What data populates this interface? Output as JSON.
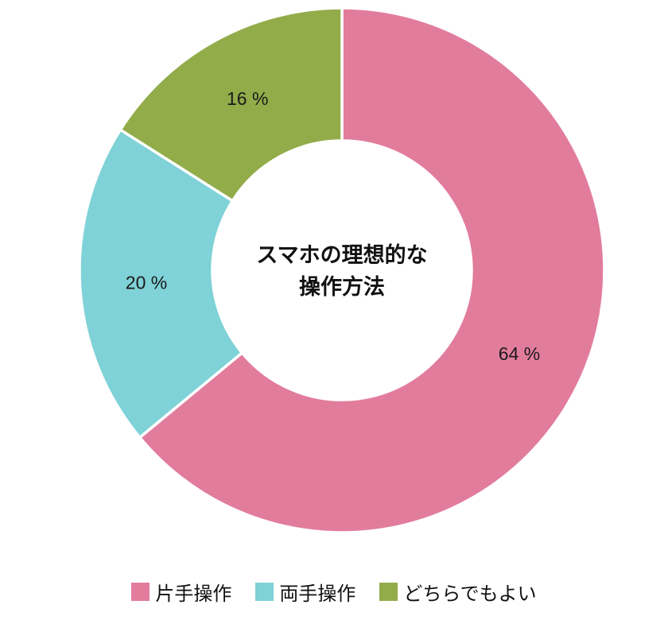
{
  "chart_data": {
    "type": "pie",
    "subtype": "donut",
    "title": "スマホの理想的な操作方法",
    "center_title_lines": [
      "スマホの理想的な",
      "操作方法"
    ],
    "legend_position": "bottom",
    "start_angle_deg": 0,
    "direction": "clockwise",
    "segments": [
      {
        "label": "片手操作",
        "value": 64,
        "display": "64 %",
        "color": "#E27C9D"
      },
      {
        "label": "両手操作",
        "value": 20,
        "display": "20 %",
        "color": "#7FD2D7"
      },
      {
        "label": "どちらでもよい",
        "value": 16,
        "display": "16 %",
        "color": "#92AC4A"
      }
    ]
  }
}
